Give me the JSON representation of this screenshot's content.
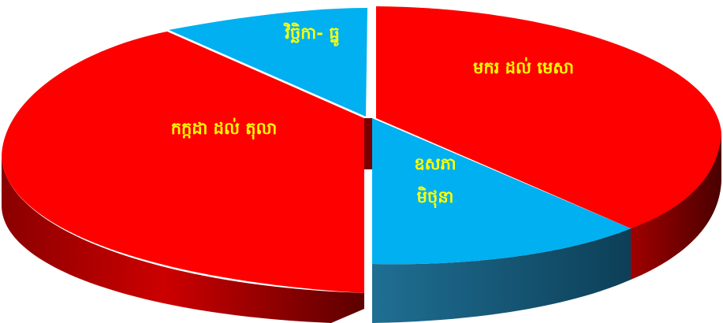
{
  "chart_data": {
    "type": "pie",
    "style": "3d-exploded",
    "title": "",
    "slices": [
      {
        "label": "មករ ដល់ មេសា",
        "value": 32.1,
        "color": "#ff0000"
      },
      {
        "label": "ឧសភា\nមិថុនា",
        "value": 15.3,
        "color": "#00b0f0"
      },
      {
        "label": "កក្កដា ដល់ តុលា",
        "value": 42.1,
        "color": "#ff0000"
      },
      {
        "label": "វិច្ឆិកា- ធ្នូ",
        "value": 10.5,
        "color": "#00b0f0"
      }
    ]
  }
}
